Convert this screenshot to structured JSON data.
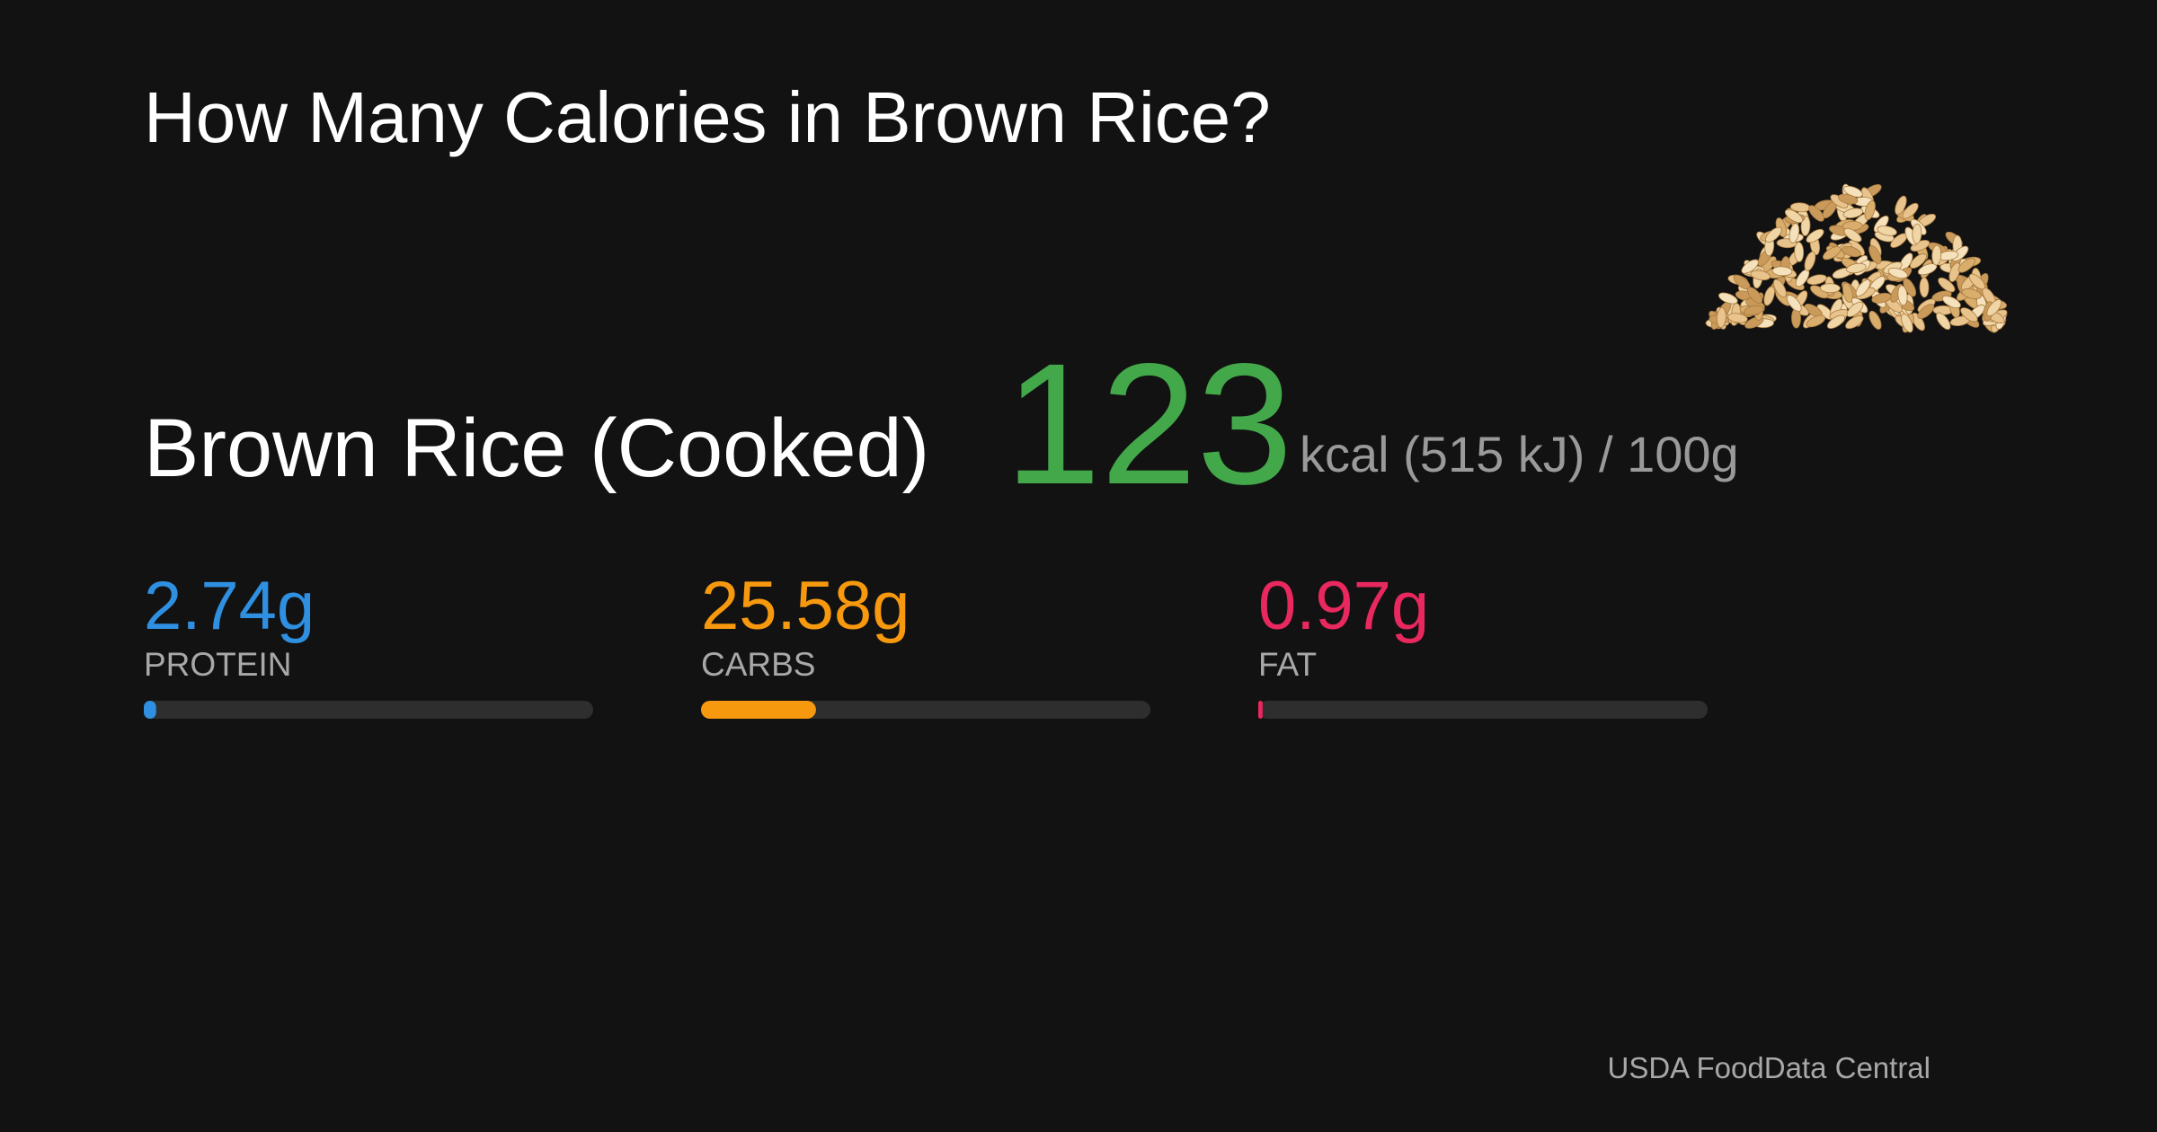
{
  "header": {
    "title": "How Many Calories in Brown Rice?"
  },
  "food": {
    "name": "Brown Rice (Cooked)",
    "calories": 123,
    "unit": "kcal (515 kJ) / 100g"
  },
  "bar_range": [
    0,
    100
  ],
  "macros": [
    {
      "value": 2.74,
      "value_label": "2.74g",
      "label": "PROTEIN",
      "color": "#2f8fe0"
    },
    {
      "value": 25.58,
      "value_label": "25.58g",
      "label": "CARBS",
      "color": "#f7990f"
    },
    {
      "value": 0.97,
      "value_label": "0.97g",
      "label": "FAT",
      "color": "#e8285e"
    }
  ],
  "source": "USDA FoodData Central"
}
